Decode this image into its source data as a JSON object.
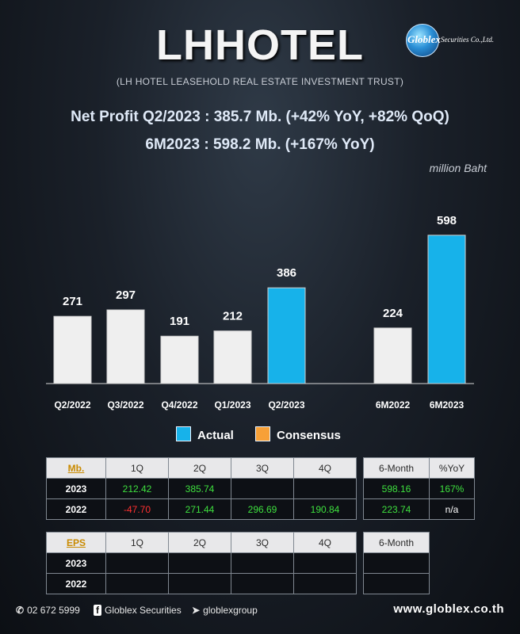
{
  "header": {
    "title": "LHHOTEL",
    "subtitle": "(LH HOTEL LEASEHOLD REAL ESTATE INVESTMENT TRUST)",
    "logo_text": "Globlex",
    "logo_sub": "Securities Co.,Ltd."
  },
  "headline": {
    "line1": "Net Profit  Q2/2023 : 385.7 Mb. (+42% YoY, +82% QoQ)",
    "line2": "6M2023 : 598.2 Mb. (+167% YoY)"
  },
  "unit": "million Baht",
  "colors": {
    "grey_bar": "#efefef",
    "actual": "#17b2ea",
    "consensus": "#f7a037"
  },
  "chart_data": {
    "type": "bar",
    "categories": [
      "Q2/2022",
      "Q3/2022",
      "Q4/2022",
      "Q1/2023",
      "Q2/2023",
      "6M2022",
      "6M2023"
    ],
    "values": [
      271,
      297,
      191,
      212,
      386,
      224,
      598
    ],
    "bar_colors": [
      "grey",
      "grey",
      "grey",
      "grey",
      "actual",
      "grey",
      "actual"
    ],
    "legend": [
      "Actual",
      "Consensus"
    ],
    "legend_placement": "bottom",
    "ylim": [
      0,
      620
    ],
    "grid": false
  },
  "legend": {
    "actual": "Actual",
    "consensus": "Consensus"
  },
  "profit_table": {
    "label": "Mb.",
    "columns": [
      "1Q",
      "2Q",
      "3Q",
      "4Q"
    ],
    "rows": [
      {
        "year": "2023",
        "cells": [
          "212.42",
          "385.74",
          "",
          ""
        ]
      },
      {
        "year": "2022",
        "cells": [
          "-47.70",
          "271.44",
          "296.69",
          "190.84"
        ]
      }
    ],
    "side_columns": [
      "6-Month",
      "%YoY"
    ],
    "side_rows": [
      [
        "598.16",
        "167%"
      ],
      [
        "223.74",
        "n/a"
      ]
    ]
  },
  "eps_table": {
    "label": "EPS",
    "columns": [
      "1Q",
      "2Q",
      "3Q",
      "4Q"
    ],
    "rows": [
      {
        "year": "2023"
      },
      {
        "year": "2022"
      }
    ],
    "side_columns": [
      "6-Month"
    ]
  },
  "footer": {
    "phone": "02 672 5999",
    "facebook": "Globlex Securities",
    "telegram": "globlexgroup",
    "website": "www.globlex.co.th"
  }
}
